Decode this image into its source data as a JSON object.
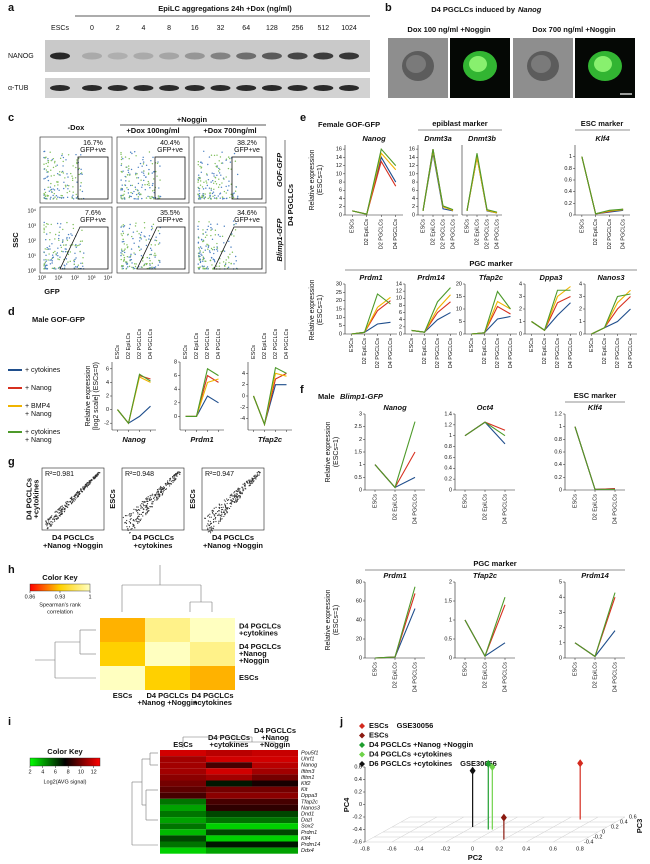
{
  "panel_labels": [
    "a",
    "b",
    "c",
    "d",
    "e",
    "f",
    "g",
    "h",
    "i",
    "j"
  ],
  "a": {
    "header": "EpiLC aggregations 24h +Dox (ng/ml)",
    "lanes": [
      "ESCs",
      "0",
      "2",
      "4",
      "8",
      "16",
      "32",
      "64",
      "128",
      "256",
      "512",
      "1024"
    ],
    "rows": [
      "NANOG",
      "α-TUB"
    ]
  },
  "b": {
    "title": "D4 PGCLCs induced by",
    "title_gene": "Nanog",
    "conditions": [
      "Dox 100 ng/ml +Noggin",
      "Dox 700 ng/ml +Noggin"
    ]
  },
  "c": {
    "top_header": "+Noggin",
    "columns": [
      "-Dox",
      "+Dox 100ng/ml",
      "+Dox 700ng/ml"
    ],
    "gates": [
      [
        "16.7%",
        "GFP+ve"
      ],
      [
        "40.4%",
        "GFP+ve"
      ],
      [
        "38.2%",
        "GFP+ve"
      ],
      [
        "7.6%",
        "GFP+ve"
      ],
      [
        "35.5%",
        "GFP+ve"
      ],
      [
        "34.6%",
        "GFP+ve"
      ]
    ],
    "row_labels": [
      "GOF-GFP",
      "Blimp1-GFP"
    ],
    "side_label": "D4 PGCLCs",
    "y_label": "SSC",
    "x_label": "GFP",
    "ticks": [
      "10⁰",
      "10¹",
      "10²",
      "10³",
      "10⁴"
    ]
  },
  "d": {
    "title": "Male GOF-GFP",
    "legend": [
      [
        "+ cytokines"
      ],
      [
        "+ Nanog"
      ],
      [
        "+ BMP4",
        "+ Nanog"
      ],
      [
        "+ cytokines",
        "+ Nanog"
      ]
    ],
    "colors": [
      "#1f4e8c",
      "#d7301f",
      "#f0b400",
      "#4d9a2a"
    ],
    "y_label": [
      "Relative expression",
      "[log2 scale] (ESCs=0)"
    ],
    "categories": [
      "ESCs",
      "D2 EpiLCs",
      "D2 PGCLCs",
      "D4 PGCLCs"
    ],
    "plots": [
      {
        "name": "Nanog",
        "ylim": [
          -3,
          7
        ],
        "yticks": [
          -2,
          0,
          2,
          4,
          6
        ],
        "values": [
          [
            0,
            -2,
            -1,
            0.5
          ],
          [
            0,
            -2,
            5,
            4.5
          ],
          [
            0,
            -2,
            4.8,
            4
          ],
          [
            0,
            -2,
            5.2,
            4.2
          ]
        ]
      },
      {
        "name": "Prdm1",
        "ylim": [
          -2,
          8
        ],
        "yticks": [
          0,
          2,
          4,
          6,
          8
        ],
        "values": [
          [
            0,
            0,
            3,
            2
          ],
          [
            0,
            0,
            6,
            5
          ],
          [
            0,
            0,
            5,
            5.5
          ],
          [
            0,
            0,
            7,
            6
          ]
        ]
      },
      {
        "name": "Tfap2c",
        "ylim": [
          -6,
          6
        ],
        "yticks": [
          -4,
          -2,
          0,
          2,
          4
        ],
        "values": [
          [
            0,
            -5,
            2,
            2
          ],
          [
            0,
            -5,
            3,
            4
          ],
          [
            0,
            -5,
            4,
            3.5
          ],
          [
            0,
            -5,
            5,
            4
          ]
        ]
      }
    ]
  },
  "e": {
    "title": "Female GOF-GFP",
    "markers": [
      "epiblast marker",
      "ESC marker",
      "PGC marker"
    ],
    "y_label": [
      "Relative expression",
      "(ESCs=1)"
    ],
    "categories": [
      "ESCs",
      "D2 EpiLCs",
      "D2 PGCLCs",
      "D4 PGCLCs"
    ],
    "colors": [
      "#1f4e8c",
      "#d7301f",
      "#f0b400",
      "#4d9a2a"
    ],
    "plots": [
      {
        "name": "Nanog",
        "ylim": [
          0,
          17
        ],
        "yticks": [
          0,
          2,
          4,
          6,
          8,
          10,
          12,
          14,
          16
        ],
        "values": [
          [
            1,
            0.2,
            14,
            8
          ],
          [
            1,
            0.2,
            13,
            7
          ],
          [
            1,
            0.2,
            15,
            11
          ],
          [
            1,
            0.2,
            16,
            12
          ]
        ]
      },
      {
        "name": "Dnmt3a",
        "ylim": [
          0,
          17
        ],
        "yticks": [
          0,
          2,
          4,
          6,
          8,
          10,
          12,
          14,
          16
        ],
        "values": [
          [
            1,
            15,
            1.5,
            1
          ],
          [
            1,
            16,
            2,
            1.2
          ],
          [
            1,
            15.5,
            2,
            1.1
          ],
          [
            1,
            16,
            2.2,
            1.3
          ]
        ]
      },
      {
        "name": "Dnmt3b",
        "ylim": [
          0,
          17
        ],
        "values": [
          [
            1,
            14,
            1,
            0.5
          ],
          [
            1,
            14.5,
            1.2,
            0.6
          ],
          [
            1,
            14,
            1.1,
            0.5
          ],
          [
            1,
            15,
            1.3,
            0.7
          ]
        ]
      },
      {
        "name": "Klf4",
        "ylim": [
          0,
          1.2
        ],
        "yticks": [
          0,
          0.2,
          0.4,
          0.6,
          0.8,
          1
        ],
        "values": [
          [
            1,
            0.02,
            0.05,
            0.08
          ],
          [
            1,
            0.02,
            0.06,
            0.1
          ],
          [
            1,
            0.02,
            0.07,
            0.09
          ],
          [
            1,
            0.02,
            0.08,
            0.1
          ]
        ]
      },
      {
        "name": "Prdm1",
        "ylim": [
          0,
          30
        ],
        "yticks": [
          0,
          5,
          10,
          15,
          20,
          25,
          30
        ],
        "values": [
          [
            0,
            1,
            6,
            7
          ],
          [
            0,
            1,
            14,
            20
          ],
          [
            0,
            1,
            16,
            22
          ],
          [
            0,
            1,
            24,
            18
          ]
        ]
      },
      {
        "name": "Prdm14",
        "ylim": [
          0,
          14
        ],
        "yticks": [
          0,
          2,
          4,
          6,
          8,
          10,
          12,
          14
        ],
        "values": [
          [
            1,
            0.5,
            4,
            6
          ],
          [
            1,
            0.5,
            6,
            9
          ],
          [
            1,
            0.5,
            7,
            11
          ],
          [
            1,
            0.5,
            9,
            13
          ]
        ]
      },
      {
        "name": "Tfap2c",
        "ylim": [
          0,
          20
        ],
        "yticks": [
          0,
          5,
          10,
          15,
          20
        ],
        "values": [
          [
            0,
            0.5,
            6,
            7
          ],
          [
            0,
            0.5,
            11,
            8
          ],
          [
            0,
            0.5,
            13,
            10
          ],
          [
            0,
            0.5,
            17,
            10
          ]
        ]
      },
      {
        "name": "Dppa3",
        "ylim": [
          0,
          4
        ],
        "yticks": [
          0,
          1,
          2,
          3,
          4
        ],
        "values": [
          [
            1,
            0.3,
            1.5,
            2.5
          ],
          [
            1,
            0.3,
            2.5,
            3
          ],
          [
            1,
            0.3,
            3,
            3.8
          ],
          [
            1,
            0.3,
            3.5,
            3.5
          ]
        ]
      },
      {
        "name": "Nanos3",
        "ylim": [
          0,
          4
        ],
        "yticks": [
          0,
          1,
          2,
          3,
          4
        ],
        "values": [
          [
            0,
            0.5,
            1,
            2
          ],
          [
            0,
            0.5,
            2,
            3
          ],
          [
            0,
            0.5,
            2.5,
            3.5
          ],
          [
            0,
            0.5,
            3,
            3.2
          ]
        ]
      }
    ]
  },
  "f": {
    "title_prefix": "Male",
    "title_gene": "Blimp1-GFP",
    "markers": [
      "ESC marker",
      "PGC marker"
    ],
    "y_label": [
      "Relative expression",
      "(ESCs=1)"
    ],
    "categories": [
      "ESCs",
      "D2 EpiLCs",
      "D4 PGCLCs"
    ],
    "colors": [
      "#1f4e8c",
      "#d7301f",
      "#4d9a2a"
    ],
    "plots": [
      {
        "name": "Nanog",
        "ylim": [
          0,
          3
        ],
        "yticks": [
          0,
          0.5,
          1,
          1.5,
          2,
          2.5,
          3
        ],
        "values": [
          [
            1,
            0.1,
            0.5
          ],
          [
            1,
            0.1,
            1.5
          ],
          [
            1,
            0.1,
            2.7
          ]
        ]
      },
      {
        "name": "Oct4",
        "ylim": [
          0,
          1.4
        ],
        "yticks": [
          0,
          0.2,
          0.4,
          0.6,
          0.8,
          1,
          1.2,
          1.4
        ],
        "values": [
          [
            1,
            1.25,
            0.85
          ],
          [
            1,
            1.25,
            1.1
          ],
          [
            1,
            1.25,
            1
          ]
        ]
      },
      {
        "name": "Klf4",
        "ylim": [
          0,
          1.2
        ],
        "yticks": [
          0,
          0.2,
          0.4,
          0.6,
          0.8,
          1,
          1.2
        ],
        "values": [
          [
            1,
            0.01,
            0.02
          ],
          [
            1,
            0.01,
            0.02
          ],
          [
            1,
            0.01,
            0.01
          ]
        ]
      },
      {
        "name": "Prdm1",
        "ylim": [
          0,
          80
        ],
        "yticks": [
          0,
          20,
          40,
          60,
          80
        ],
        "values": [
          [
            0,
            1,
            52
          ],
          [
            0,
            1,
            68
          ],
          [
            0,
            1,
            75
          ]
        ]
      },
      {
        "name": "Tfap2c",
        "ylim": [
          0,
          2
        ],
        "yticks": [
          0,
          0.5,
          1,
          1.5,
          2
        ],
        "values": [
          [
            1,
            0.05,
            0.4
          ],
          [
            1,
            0.05,
            1.4
          ],
          [
            1,
            0.05,
            1.6
          ]
        ]
      },
      {
        "name": "Prdm14",
        "ylim": [
          0,
          5
        ],
        "yticks": [
          0,
          1,
          2,
          3,
          4,
          5
        ],
        "values": [
          [
            1,
            0.1,
            1.8
          ],
          [
            1,
            0.1,
            4
          ],
          [
            1,
            0.1,
            4.3
          ]
        ]
      }
    ]
  },
  "g": {
    "plots": [
      {
        "r2": "R²=0.981",
        "x_label": [
          "D4 PGCLCs",
          "+Nanog +Noggin"
        ],
        "y_label": [
          "D4 PGCLCs",
          "+cytokines"
        ]
      },
      {
        "r2": "R²=0.948",
        "x_label": [
          "D4 PGCLCs",
          "+cytokines"
        ],
        "y_label": [
          "ESCs"
        ]
      },
      {
        "r2": "R²=0.947",
        "x_label": [
          "D4 PGCLCs",
          "+Nanog +Noggin"
        ],
        "y_label": [
          "ESCs"
        ]
      }
    ]
  },
  "h": {
    "key_title": "Color Key",
    "key_ticks": [
      0.86,
      0.93,
      1
    ],
    "key_range": [
      0.86,
      1
    ],
    "key_label": [
      "Spearman's rank",
      "correlation"
    ],
    "rows": [
      [
        "D4 PGCLCs",
        "+cytokines"
      ],
      [
        "D4 PGCLCs",
        "+Nanog",
        "+Noggin"
      ],
      [
        "ESCs"
      ]
    ],
    "columns": [
      [
        "ESCs"
      ],
      [
        "D4 PGCLCs",
        "+Nanog +Noggin"
      ],
      [
        "D4 PGCLCs",
        "+cytokines"
      ]
    ],
    "values": [
      [
        0.92,
        0.98,
        1
      ],
      [
        0.93,
        1,
        0.98
      ],
      [
        1,
        0.93,
        0.92
      ]
    ]
  },
  "i": {
    "key_title": "Color Key",
    "key_ticks": [
      2,
      4,
      6,
      8,
      10,
      12
    ],
    "key_range": [
      2,
      13
    ],
    "key_label": "Log2(AVG signal)",
    "columns": [
      [
        "ESCs"
      ],
      [
        "D4 PGCLCs",
        "+cytokines"
      ],
      [
        "D4 PGCLCs",
        "+Nanog",
        "+Noggin"
      ]
    ],
    "genes": [
      "Pou5f1",
      "Uhrf1",
      "Nanog",
      "Ifitm3",
      "Ifitm1",
      "Klf2",
      "Kit",
      "Dppa3",
      "Tfap2c",
      "Nanos3",
      "Dnd1",
      "Dazl",
      "Sox2",
      "Prdm1",
      "Klf4",
      "Prdm14",
      "Ddx4"
    ],
    "values": [
      [
        12,
        11.5,
        11.8
      ],
      [
        11,
        12,
        12
      ],
      [
        11,
        9,
        11.5
      ],
      [
        11,
        12,
        11
      ],
      [
        10.5,
        11,
        10
      ],
      [
        10,
        7,
        8
      ],
      [
        9.5,
        10,
        10
      ],
      [
        9,
        10.5,
        10.5
      ],
      [
        5,
        9,
        9
      ],
      [
        4,
        8.5,
        8.5
      ],
      [
        5,
        6,
        6
      ],
      [
        4,
        5,
        5
      ],
      [
        5,
        3,
        3
      ],
      [
        3.5,
        6,
        6
      ],
      [
        6,
        3,
        3
      ],
      [
        5,
        7,
        7
      ],
      [
        3,
        4,
        4
      ]
    ]
  },
  "j": {
    "groups": [
      {
        "name": "ESCs",
        "source": "GSE30056",
        "color": "#d42a1e",
        "pc2": 0.5,
        "pc3": 0.5,
        "pc4": 0.3
      },
      {
        "name": "ESCs",
        "color": "#8b1a10",
        "pc2": 0.2,
        "pc3": -0.3,
        "pc4": -0.25
      },
      {
        "name": "D4 PGCLCs +Nanog +Noggin",
        "color": "#1e9e2e",
        "pc2": -0.05,
        "pc3": 0.1,
        "pc4": 0.45
      },
      {
        "name": "D4 PGCLCs +cytokines",
        "color": "#6fd34a",
        "pc2": -0.02,
        "pc3": 0.1,
        "pc4": 0.4
      },
      {
        "name": "D6 PGCLCs +cytokines",
        "source": "GSE30056",
        "color": "#111111",
        "pc2": -0.2,
        "pc3": 0.2,
        "pc4": 0.3
      }
    ],
    "x_label": "PC2",
    "y_label": "PC3",
    "z_label": "PC4",
    "pc2lim": [
      -0.8,
      0.8
    ],
    "pc2ticks": [
      -0.8,
      -0.6,
      -0.4,
      -0.2,
      0,
      0.2,
      0.4,
      0.6,
      0.8
    ],
    "pc3lim": [
      -0.4,
      0.6
    ],
    "pc3ticks": [
      -0.4,
      -0.2,
      0,
      0.2,
      0.4,
      0.6
    ],
    "pc4lim": [
      -0.6,
      0.6
    ],
    "pc4ticks": [
      -0.6,
      -0.4,
      -0.2,
      0,
      0.2,
      0.4,
      0.6
    ]
  }
}
